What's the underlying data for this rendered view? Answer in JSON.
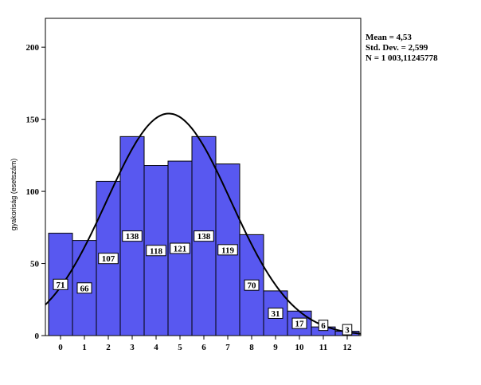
{
  "chart_data": {
    "type": "bar",
    "subtype": "histogram",
    "ylabel": "gyakoriság (esetszám)",
    "xlabel": "",
    "categories": [
      "0",
      "1",
      "2",
      "3",
      "4",
      "5",
      "6",
      "7",
      "8",
      "9",
      "10",
      "11",
      "12"
    ],
    "values": [
      71,
      66,
      107,
      138,
      118,
      121,
      138,
      119,
      70,
      31,
      17,
      6,
      3
    ],
    "data_labels": [
      "71",
      "66",
      "107",
      "138",
      "118",
      "121",
      "138",
      "119",
      "70",
      "31",
      "17",
      "6",
      "3"
    ],
    "ylim": [
      0,
      220
    ],
    "yticks": [
      0,
      50,
      100,
      150,
      200
    ],
    "grid": false,
    "normal_curve": {
      "mean": 4.53,
      "sd": 2.599,
      "n": 1003.11245778
    },
    "stats": {
      "mean": "Mean = 4,53",
      "sd": "Std. Dev. = 2,599",
      "n": "N = 1 003,11245778"
    },
    "colors": {
      "bar_fill": "#5858f0",
      "bar_stroke": "#000000",
      "curve": "#000000"
    }
  }
}
